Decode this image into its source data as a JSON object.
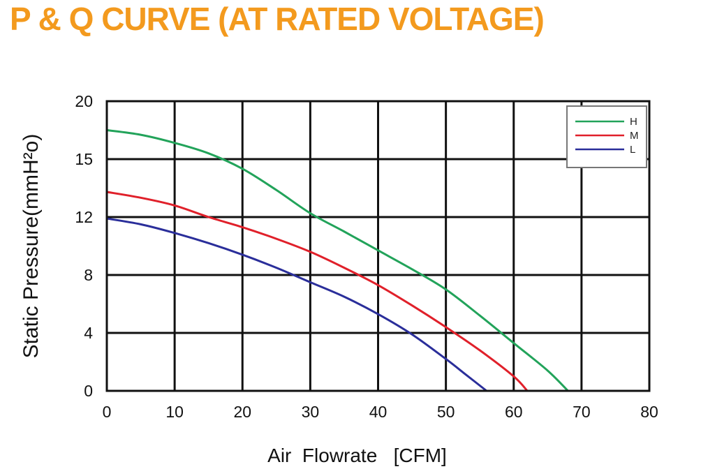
{
  "chart_data": {
    "type": "line",
    "title": "P & Q CURVE (AT RATED VOLTAGE)",
    "xlabel": "Air  Flowrate   [CFM]",
    "ylabel": "Static Pressure(mmH²o)",
    "xlim": [
      0,
      80
    ],
    "x_ticks": [
      0,
      10,
      20,
      30,
      40,
      50,
      60,
      70,
      80
    ],
    "y_tick_labels": [
      "0",
      "4",
      "8",
      "12",
      "15",
      "20"
    ],
    "grid": true,
    "legend_position": "top-right",
    "series": [
      {
        "name": "H",
        "color": "#22a35a",
        "points": [
          [
            0,
            17.5
          ],
          [
            5,
            17.1
          ],
          [
            10,
            16.4
          ],
          [
            15,
            15.5
          ],
          [
            20,
            14.5
          ],
          [
            25,
            13.4
          ],
          [
            30,
            12.2
          ],
          [
            35,
            11.0
          ],
          [
            40,
            9.7
          ],
          [
            45,
            8.4
          ],
          [
            50,
            7.0
          ],
          [
            55,
            5.2
          ],
          [
            60,
            3.3
          ],
          [
            65,
            1.4
          ],
          [
            68,
            0
          ]
        ]
      },
      {
        "name": "M",
        "color": "#e0202a",
        "points": [
          [
            0,
            13.3
          ],
          [
            5,
            13.0
          ],
          [
            10,
            12.6
          ],
          [
            15,
            12.0
          ],
          [
            20,
            11.3
          ],
          [
            25,
            10.5
          ],
          [
            30,
            9.6
          ],
          [
            35,
            8.5
          ],
          [
            40,
            7.3
          ],
          [
            45,
            5.9
          ],
          [
            50,
            4.4
          ],
          [
            55,
            2.8
          ],
          [
            60,
            1.0
          ],
          [
            62,
            0
          ]
        ]
      },
      {
        "name": "L",
        "color": "#2a2e9a",
        "points": [
          [
            0,
            11.9
          ],
          [
            5,
            11.5
          ],
          [
            10,
            10.9
          ],
          [
            15,
            10.2
          ],
          [
            20,
            9.4
          ],
          [
            25,
            8.5
          ],
          [
            30,
            7.5
          ],
          [
            35,
            6.5
          ],
          [
            40,
            5.3
          ],
          [
            45,
            3.9
          ],
          [
            50,
            2.2
          ],
          [
            53,
            1.1
          ],
          [
            56,
            0
          ]
        ]
      }
    ]
  },
  "style": {
    "title_color": "#f39a1e"
  }
}
